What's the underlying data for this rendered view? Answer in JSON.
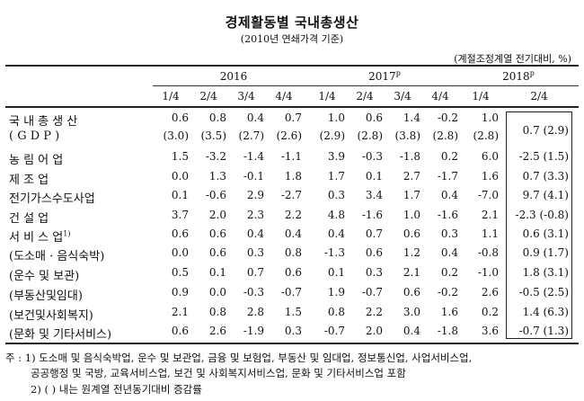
{
  "title": "경제활동별 국내총생산",
  "subtitle": "(2010년 연쇄가격 기준)",
  "unit": "(계절조정계열 전기대비, %)",
  "years": [
    {
      "label": "2016",
      "sup": ""
    },
    {
      "label": "2017",
      "sup": "p"
    },
    {
      "label": "2018",
      "sup": "p"
    }
  ],
  "quarters": [
    "1/4",
    "2/4",
    "3/4",
    "4/4",
    "1/4",
    "2/4",
    "3/4",
    "4/4",
    "1/4",
    "2/4"
  ],
  "rows": [
    {
      "label": "국 내 총 생 산",
      "values": [
        "0.6",
        "0.8",
        "0.4",
        "0.7",
        "1.0",
        "0.6",
        "1.4",
        "-0.2",
        "1.0",
        "0.7 (2.9)"
      ]
    },
    {
      "label": "( G D P )",
      "values": [
        "(3.0)",
        "(3.5)",
        "(2.7)",
        "(2.6)",
        "(2.9)",
        "(2.8)",
        "(3.8)",
        "(2.8)",
        "(2.8)",
        ""
      ]
    },
    {
      "label": "농 림 어 업",
      "values": [
        "1.5",
        "-3.2",
        "-1.4",
        "-1.1",
        "3.9",
        "-0.3",
        "-1.8",
        "0.2",
        "6.0",
        "-2.5 (1.5)"
      ]
    },
    {
      "label": "제 조 업",
      "values": [
        "0.0",
        "1.3",
        "-0.1",
        "1.8",
        "1.7",
        "0.1",
        "2.7",
        "-1.7",
        "1.6",
        "0.7 (3.3)"
      ]
    },
    {
      "label": "전기가스수도사업",
      "values": [
        "0.1",
        "-0.6",
        "2.9",
        "-2.7",
        "0.3",
        "3.4",
        "1.7",
        "0.4",
        "-7.0",
        "9.7 (4.1)"
      ]
    },
    {
      "label": "건 설 업",
      "values": [
        "3.7",
        "2.0",
        "2.3",
        "2.2",
        "4.8",
        "-1.6",
        "1.0",
        "-1.6",
        "2.1",
        "-2.3 (-0.8)"
      ]
    },
    {
      "label": "서 비 스 업",
      "sup": "1)",
      "values": [
        "0.6",
        "0.6",
        "0.4",
        "0.4",
        "0.4",
        "0.7",
        "0.6",
        "0.3",
        "1.1",
        "0.6 (3.1)"
      ]
    },
    {
      "label": "(도소매 · 음식숙박)",
      "values": [
        "0.0",
        "0.6",
        "0.3",
        "0.8",
        "-1.3",
        "0.6",
        "1.2",
        "0.4",
        "-0.8",
        "0.9 (1.7)"
      ]
    },
    {
      "label": "(운수 및 보관)",
      "values": [
        "0.5",
        "0.1",
        "0.7",
        "0.6",
        "0.1",
        "0.3",
        "2.1",
        "0.2",
        "-1.0",
        "1.8 (3.1)"
      ]
    },
    {
      "label": "(부동산및임대)",
      "values": [
        "0.9",
        "0.0",
        "-0.3",
        "-0.7",
        "1.9",
        "-0.7",
        "0.6",
        "-0.2",
        "2.6",
        "-0.5 (2.5)"
      ]
    },
    {
      "label": "(보건및사회복지)",
      "values": [
        "2.1",
        "0.8",
        "2.8",
        "1.5",
        "0.8",
        "2.2",
        "3.0",
        "1.6",
        "0.2",
        "1.4 (6.3)"
      ]
    },
    {
      "label": "(문화 및 기타서비스)",
      "values": [
        "0.6",
        "2.6",
        "-1.9",
        "0.3",
        "-0.7",
        "2.0",
        "0.4",
        "-1.8",
        "3.6",
        "-0.7 (1.3)"
      ]
    }
  ],
  "notes": [
    "주 : 1) 도소매 및 음식숙박업, 운수 및 보관업, 금융 및 보험업, 부동산 및 임대업, 정보통신업, 사업서비스업,",
    "공공행정 및 국방, 교육서비스업, 보건 및 사회복지서비스업, 문화 및 기타서비스업 포함",
    "2) ( ) 내는 원계열 전년동기대비 증감률"
  ]
}
